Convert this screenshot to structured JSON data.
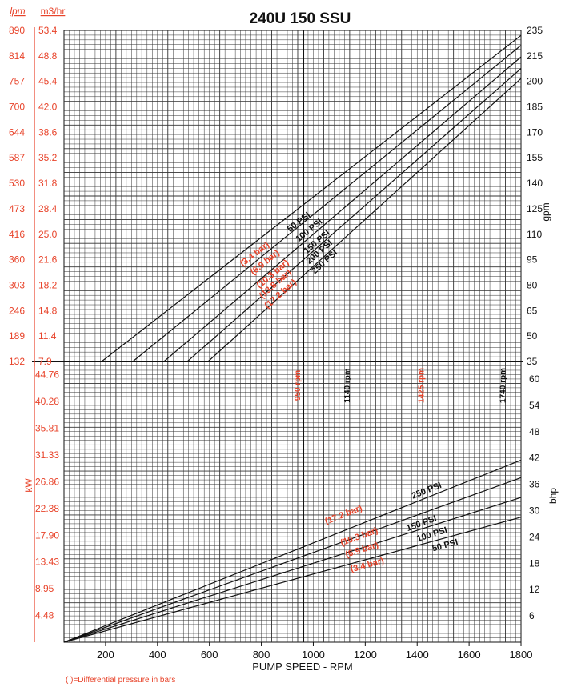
{
  "chart_data": {
    "type": "line",
    "title": "240U 150 SSU",
    "xlabel": "PUMP SPEED - RPM",
    "footnote": "( )=Differential pressure in bars",
    "x_ticks": [
      "200",
      "400",
      "600",
      "800",
      "1000",
      "1200",
      "1400",
      "1600",
      "1800"
    ],
    "xlim": [
      40,
      1800
    ],
    "flow": {
      "ylim": [
        35,
        235
      ],
      "right_label": "gpm",
      "right_ticks": [
        "35",
        "50",
        "65",
        "80",
        "95",
        "110",
        "125",
        "140",
        "155",
        "170",
        "185",
        "200",
        "215",
        "235"
      ],
      "lpm_header": "lpm",
      "lpm_ticks": [
        "132",
        "189",
        "246",
        "303",
        "360",
        "416",
        "473",
        "530",
        "587",
        "644",
        "700",
        "757",
        "814",
        "890"
      ],
      "m3_header": "m3/hr",
      "m3_ticks": [
        "7.9",
        "11.4",
        "14.8",
        "18.2",
        "21.6",
        "25.0",
        "28.4",
        "31.8",
        "35.2",
        "38.6",
        "42.0",
        "45.4",
        "48.8",
        "53.4"
      ],
      "series": [
        {
          "name": "50 PSI",
          "bar_label": "(3.4 bar)",
          "x": [
            185,
            1800
          ],
          "y": [
            35,
            232
          ],
          "label_x": 950,
          "label_y": 118
        },
        {
          "name": "100 PSI",
          "bar_label": "(6.9 bar)",
          "x": [
            305,
            1800
          ],
          "y": [
            35,
            226
          ],
          "label_x": 990,
          "label_y": 113
        },
        {
          "name": "150 PSI",
          "bar_label": "(10.3 bar)",
          "x": [
            425,
            1800
          ],
          "y": [
            35,
            219
          ],
          "label_x": 1020,
          "label_y": 106
        },
        {
          "name": "200 PSI",
          "bar_label": "(13.8 bar)",
          "x": [
            515,
            1800
          ],
          "y": [
            35,
            212
          ],
          "label_x": 1030,
          "label_y": 100
        },
        {
          "name": "250 PSI",
          "bar_label": "(17.2 bar)",
          "x": [
            595,
            1800
          ],
          "y": [
            35,
            206
          ],
          "label_x": 1050,
          "label_y": 94
        }
      ]
    },
    "power": {
      "ylim": [
        0,
        64
      ],
      "left_label": "kW",
      "left_ticks": [
        "4.48",
        "8.95",
        "13.43",
        "17.90",
        "22.38",
        "26.86",
        "31.33",
        "35.81",
        "40.28",
        "44.76"
      ],
      "right_label": "bhp",
      "right_ticks": [
        "6",
        "12",
        "18",
        "24",
        "30",
        "36",
        "42",
        "48",
        "54",
        "60"
      ],
      "series": [
        {
          "name": "250 PSI",
          "bar_label": "(17.2 bar)",
          "x": [
            40,
            1800
          ],
          "y": [
            0,
            41.5
          ],
          "label_x": 1440,
          "label_y": 34
        },
        {
          "name": "150 PSI",
          "bar_label": "(10.3 bar)",
          "x": [
            40,
            1800
          ],
          "y": [
            0,
            37.5
          ],
          "label_x": 1420,
          "label_y": 26.5
        },
        {
          "name": "100 PSI",
          "bar_label": "(6.9 bar)",
          "x": [
            40,
            1800
          ],
          "y": [
            0,
            33
          ],
          "label_x": 1460,
          "label_y": 24
        },
        {
          "name": "50 PSI",
          "bar_label": "(3.4 bar)",
          "x": [
            40,
            1800
          ],
          "y": [
            0,
            28.5
          ],
          "label_x": 1510,
          "label_y": 21.5
        }
      ],
      "bar_label_pos": [
        {
          "x": 1120,
          "y": 28.5
        },
        {
          "x": 1180,
          "y": 23.5
        },
        {
          "x": 1190,
          "y": 20.5
        },
        {
          "x": 1210,
          "y": 17
        }
      ]
    },
    "rpm_markers": [
      {
        "label": "950 rpm",
        "rpm": 950,
        "color": "#e8442b"
      },
      {
        "label": "1140 rpm",
        "rpm": 1140,
        "color": "#111111"
      },
      {
        "label": "1425 rpm",
        "rpm": 1425,
        "color": "#e8442b"
      },
      {
        "label": "1740 rpm",
        "rpm": 1740,
        "color": "#111111"
      }
    ],
    "colors": {
      "metric": "#e8442b",
      "ink": "#111111",
      "grid": "#333333"
    }
  }
}
